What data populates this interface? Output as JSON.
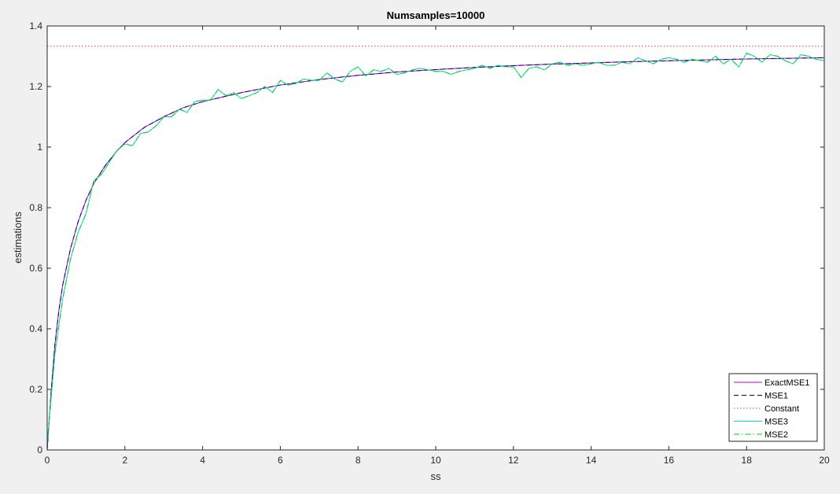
{
  "chart_data": {
    "type": "line",
    "title": "Numsamples=10000",
    "xlabel": "ss",
    "ylabel": "estimations",
    "xlim": [
      0,
      20
    ],
    "ylim": [
      0,
      1.4
    ],
    "xticks": [
      0,
      2,
      4,
      6,
      8,
      10,
      12,
      14,
      16,
      18,
      20
    ],
    "yticks": [
      0,
      0.2,
      0.4,
      0.6,
      0.8,
      1,
      1.2,
      1.4
    ],
    "xtick_labels": [
      "0",
      "2",
      "4",
      "6",
      "8",
      "10",
      "12",
      "14",
      "16",
      "18",
      "20"
    ],
    "ytick_labels": [
      "0",
      "0.2",
      "0.4",
      "0.6",
      "0.8",
      "1",
      "1.2",
      "1.4"
    ],
    "grid": false,
    "legend_position": "bottom-right",
    "series": [
      {
        "name": "ExactMSE1",
        "color": "#c000c0",
        "dash": "solid",
        "x": [
          0,
          0.1,
          0.2,
          0.3,
          0.4,
          0.6,
          0.8,
          1.0,
          1.2,
          1.5,
          1.8,
          2.0,
          2.5,
          3.0,
          3.5,
          4.0,
          4.5,
          5.0,
          6.0,
          7.0,
          8.0,
          9.0,
          10.0,
          11.0,
          12.0,
          13.0,
          14.0,
          15.0,
          16.0,
          17.0,
          18.0,
          19.0,
          20.0
        ],
        "y": [
          0,
          0.19,
          0.35,
          0.46,
          0.545,
          0.665,
          0.755,
          0.825,
          0.88,
          0.94,
          0.988,
          1.015,
          1.065,
          1.1,
          1.13,
          1.15,
          1.165,
          1.18,
          1.205,
          1.223,
          1.237,
          1.248,
          1.256,
          1.263,
          1.269,
          1.274,
          1.278,
          1.282,
          1.285,
          1.288,
          1.291,
          1.293,
          1.295
        ]
      },
      {
        "name": "MSE1",
        "color": "#000080",
        "dash": "dashed",
        "x": [
          0,
          0.1,
          0.2,
          0.3,
          0.4,
          0.6,
          0.8,
          1.0,
          1.2,
          1.5,
          1.8,
          2.0,
          2.5,
          3.0,
          3.5,
          4.0,
          4.5,
          5.0,
          6.0,
          7.0,
          8.0,
          9.0,
          10.0,
          11.0,
          12.0,
          13.0,
          14.0,
          15.0,
          16.0,
          17.0,
          18.0,
          19.0,
          20.0
        ],
        "y": [
          0,
          0.19,
          0.35,
          0.46,
          0.545,
          0.665,
          0.755,
          0.825,
          0.88,
          0.94,
          0.988,
          1.015,
          1.065,
          1.1,
          1.13,
          1.15,
          1.165,
          1.18,
          1.205,
          1.223,
          1.237,
          1.248,
          1.256,
          1.263,
          1.269,
          1.274,
          1.278,
          1.282,
          1.285,
          1.288,
          1.291,
          1.293,
          1.295
        ]
      },
      {
        "name": "Constant",
        "color": "#e03c3c",
        "dash": "dotted",
        "x": [
          0,
          20
        ],
        "y": [
          1.333,
          1.333
        ]
      },
      {
        "name": "MSE3",
        "color": "#00e0e0",
        "dash": "solid",
        "x": [
          0,
          0.2,
          0.4,
          0.6,
          0.8,
          1.0,
          1.2,
          1.4,
          1.6,
          1.8,
          2.0,
          2.2,
          2.4,
          2.6,
          2.8,
          3.0,
          3.2,
          3.4,
          3.6,
          3.8,
          4.0,
          4.2,
          4.4,
          4.6,
          4.8,
          5.0,
          5.2,
          5.4,
          5.6,
          5.8,
          6.0,
          6.2,
          6.4,
          6.6,
          6.8,
          7.0,
          7.2,
          7.4,
          7.6,
          7.8,
          8.0,
          8.2,
          8.4,
          8.6,
          8.8,
          9.0,
          9.2,
          9.4,
          9.6,
          9.8,
          10.0,
          10.2,
          10.4,
          10.6,
          10.8,
          11.0,
          11.2,
          11.4,
          11.6,
          11.8,
          12.0,
          12.2,
          12.4,
          12.6,
          12.8,
          13.0,
          13.2,
          13.4,
          13.6,
          13.8,
          14.0,
          14.2,
          14.4,
          14.6,
          14.8,
          15.0,
          15.2,
          15.4,
          15.6,
          15.8,
          16.0,
          16.2,
          16.4,
          16.6,
          16.8,
          17.0,
          17.2,
          17.4,
          17.6,
          17.8,
          18.0,
          18.2,
          18.4,
          18.6,
          18.8,
          19.0,
          19.2,
          19.4,
          19.6,
          19.8,
          20.0
        ],
        "y": [
          0.02,
          0.32,
          0.5,
          0.63,
          0.72,
          0.78,
          0.89,
          0.91,
          0.95,
          0.99,
          1.01,
          1.005,
          1.045,
          1.05,
          1.07,
          1.1,
          1.1,
          1.125,
          1.115,
          1.15,
          1.155,
          1.155,
          1.19,
          1.17,
          1.18,
          1.16,
          1.17,
          1.18,
          1.2,
          1.18,
          1.22,
          1.205,
          1.21,
          1.225,
          1.22,
          1.22,
          1.245,
          1.225,
          1.215,
          1.25,
          1.265,
          1.235,
          1.255,
          1.25,
          1.26,
          1.24,
          1.245,
          1.255,
          1.26,
          1.255,
          1.25,
          1.25,
          1.24,
          1.25,
          1.255,
          1.26,
          1.27,
          1.26,
          1.27,
          1.265,
          1.265,
          1.23,
          1.26,
          1.265,
          1.255,
          1.275,
          1.28,
          1.27,
          1.275,
          1.27,
          1.275,
          1.28,
          1.27,
          1.27,
          1.28,
          1.275,
          1.295,
          1.285,
          1.275,
          1.29,
          1.295,
          1.29,
          1.28,
          1.29,
          1.285,
          1.28,
          1.3,
          1.275,
          1.29,
          1.265,
          1.31,
          1.3,
          1.28,
          1.305,
          1.3,
          1.285,
          1.275,
          1.305,
          1.3,
          1.29,
          1.285
        ]
      },
      {
        "name": "MSE2",
        "color": "#00d000",
        "dash": "dashdot",
        "x": [
          0,
          0.2,
          0.4,
          0.6,
          0.8,
          1.0,
          1.2,
          1.4,
          1.6,
          1.8,
          2.0,
          2.2,
          2.4,
          2.6,
          2.8,
          3.0,
          3.2,
          3.4,
          3.6,
          3.8,
          4.0,
          4.2,
          4.4,
          4.6,
          4.8,
          5.0,
          5.2,
          5.4,
          5.6,
          5.8,
          6.0,
          6.2,
          6.4,
          6.6,
          6.8,
          7.0,
          7.2,
          7.4,
          7.6,
          7.8,
          8.0,
          8.2,
          8.4,
          8.6,
          8.8,
          9.0,
          9.2,
          9.4,
          9.6,
          9.8,
          10.0,
          10.2,
          10.4,
          10.6,
          10.8,
          11.0,
          11.2,
          11.4,
          11.6,
          11.8,
          12.0,
          12.2,
          12.4,
          12.6,
          12.8,
          13.0,
          13.2,
          13.4,
          13.6,
          13.8,
          14.0,
          14.2,
          14.4,
          14.6,
          14.8,
          15.0,
          15.2,
          15.4,
          15.6,
          15.8,
          16.0,
          16.2,
          16.4,
          16.6,
          16.8,
          17.0,
          17.2,
          17.4,
          17.6,
          17.8,
          18.0,
          18.2,
          18.4,
          18.6,
          18.8,
          19.0,
          19.2,
          19.4,
          19.6,
          19.8,
          20.0
        ],
        "y": [
          0.02,
          0.32,
          0.5,
          0.63,
          0.72,
          0.78,
          0.89,
          0.91,
          0.95,
          0.99,
          1.01,
          1.005,
          1.045,
          1.05,
          1.07,
          1.1,
          1.1,
          1.125,
          1.115,
          1.15,
          1.155,
          1.155,
          1.19,
          1.17,
          1.18,
          1.16,
          1.17,
          1.18,
          1.2,
          1.18,
          1.22,
          1.205,
          1.21,
          1.225,
          1.22,
          1.22,
          1.245,
          1.225,
          1.215,
          1.25,
          1.265,
          1.235,
          1.255,
          1.25,
          1.26,
          1.24,
          1.245,
          1.255,
          1.26,
          1.255,
          1.25,
          1.25,
          1.24,
          1.25,
          1.255,
          1.26,
          1.27,
          1.26,
          1.27,
          1.265,
          1.265,
          1.23,
          1.26,
          1.265,
          1.255,
          1.275,
          1.28,
          1.27,
          1.275,
          1.27,
          1.275,
          1.28,
          1.27,
          1.27,
          1.28,
          1.275,
          1.295,
          1.285,
          1.275,
          1.29,
          1.295,
          1.29,
          1.28,
          1.29,
          1.285,
          1.28,
          1.3,
          1.275,
          1.29,
          1.265,
          1.31,
          1.3,
          1.28,
          1.305,
          1.3,
          1.285,
          1.275,
          1.305,
          1.3,
          1.29,
          1.285
        ]
      }
    ]
  }
}
